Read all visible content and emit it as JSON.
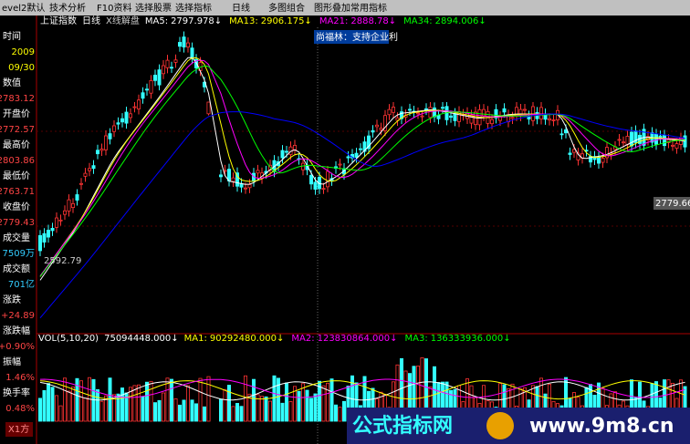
{
  "toolbar": [
    "evel2默认",
    "技术分析",
    "F10资料",
    "选择股票",
    "选择指标",
    "日线",
    "多图组合",
    "图形叠加",
    "常用指标"
  ],
  "info_panel": [
    {
      "label": "时间",
      "values": [
        "2009",
        "09/30"
      ]
    },
    {
      "label": "数值",
      "values": [
        "2783.12"
      ]
    },
    {
      "label": "开盘价",
      "values": [
        "2772.57"
      ]
    },
    {
      "label": "最高价",
      "values": [
        "2803.86"
      ]
    },
    {
      "label": "最低价",
      "values": [
        "2763.71"
      ]
    },
    {
      "label": "收盘价",
      "values": [
        "2779.43"
      ]
    },
    {
      "label": "成交量",
      "values": [
        "7509万"
      ]
    },
    {
      "label": "成交额",
      "values": [
        "701亿"
      ]
    },
    {
      "label": "涨跌",
      "values": [
        "+24.89"
      ]
    },
    {
      "label": "涨跌幅",
      "values": [
        "+0.90%"
      ]
    },
    {
      "label": "振幅",
      "values": [
        "1.46%"
      ]
    },
    {
      "label": "换手率",
      "values": [
        "0.48%"
      ]
    }
  ],
  "panel_footer": "X1方",
  "price_header": {
    "title": "上证指数",
    "period": "日线",
    "tool": "X线解盘",
    "ma": [
      {
        "name": "MA5:",
        "value": "2797.978↓"
      },
      {
        "name": "MA13:",
        "value": "2906.175↓"
      },
      {
        "name": "MA21:",
        "value": "2888.78↓"
      },
      {
        "name": "MA34:",
        "value": "2894.006↓"
      }
    ]
  },
  "news_popup": "尚福林：支持企业利",
  "price_tags": {
    "last": "2779.66",
    "low": "2592.79"
  },
  "volume_header": {
    "title": "VOL(5,10,20)",
    "value": "75094448.000↓",
    "ma": [
      {
        "name": "MA1:",
        "value": "90292480.000↓"
      },
      {
        "name": "MA2:",
        "value": "123830864.000↓"
      },
      {
        "name": "MA3:",
        "value": "136333936.000↓"
      }
    ]
  },
  "watermark": {
    "name": "公式指标网",
    "url": "www.9m8.cn"
  }
}
